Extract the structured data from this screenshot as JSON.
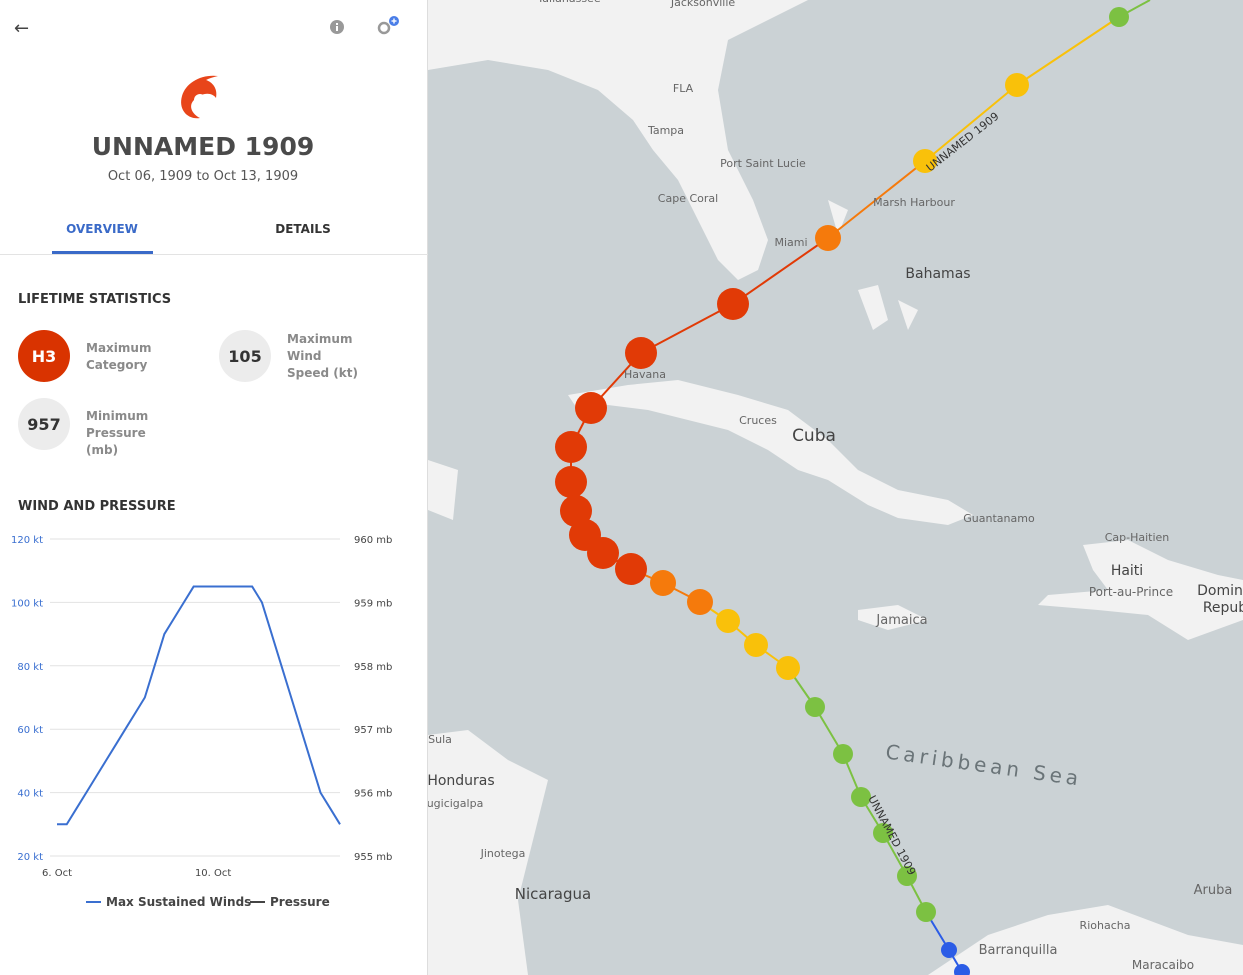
{
  "header": {
    "title": "UNNAMED 1909",
    "dates": "Oct 06, 1909 to Oct 13, 1909"
  },
  "tabs": [
    "OVERVIEW",
    "DETAILS"
  ],
  "stats": {
    "heading": "LIFETIME STATISTICS",
    "items": [
      {
        "value": "H3",
        "label": "Maximum Category"
      },
      {
        "value": "105",
        "label": "Maximum Wind Speed (kt)"
      },
      {
        "value": "957",
        "label": "Minimum Pressure (mb)"
      }
    ]
  },
  "chart_data": {
    "type": "line",
    "title": "WIND AND PRESSURE",
    "x": [
      6,
      6.25,
      6.5,
      6.75,
      7,
      7.25,
      7.5,
      7.75,
      8,
      8.25,
      8.5,
      8.75,
      9,
      9.25,
      9.5,
      9.75,
      10,
      10.25,
      10.5,
      10.75,
      11,
      11.25,
      11.5,
      11.75,
      12,
      12.25,
      12.5,
      12.75,
      13,
      13.25
    ],
    "series": [
      {
        "name": "Max Sustained Winds",
        "color": "#3a6fd0",
        "values": [
          30,
          30,
          35,
          40,
          45,
          50,
          55,
          60,
          65,
          70,
          80,
          90,
          95,
          100,
          105,
          105,
          105,
          105,
          105,
          105,
          105,
          100,
          90,
          80,
          70,
          60,
          50,
          40,
          35,
          30
        ]
      },
      {
        "name": "Pressure",
        "color": "#444444",
        "axis": "y2",
        "values": [
          null,
          null,
          null,
          null,
          null,
          null,
          null,
          null,
          null,
          null,
          null,
          null,
          null,
          null,
          null,
          null,
          null,
          null,
          null,
          null,
          null,
          null,
          null,
          null,
          null,
          null,
          null,
          null,
          null,
          null
        ]
      }
    ],
    "xlim": [
      6,
      13.25
    ],
    "xticks": [
      {
        "value": 6,
        "label": "6. Oct"
      },
      {
        "value": 10,
        "label": "10. Oct"
      }
    ],
    "ylim": [
      20,
      120
    ],
    "yticks": [
      {
        "value": 20,
        "label": "20 kt"
      },
      {
        "value": 40,
        "label": "40 kt"
      },
      {
        "value": 60,
        "label": "60 kt"
      },
      {
        "value": 80,
        "label": "80 kt"
      },
      {
        "value": 100,
        "label": "100 kt"
      },
      {
        "value": 120,
        "label": "120 kt"
      }
    ],
    "y2lim": [
      955,
      960
    ],
    "y2ticks": [
      {
        "value": 955,
        "label": "955 mb"
      },
      {
        "value": 956,
        "label": "956 mb"
      },
      {
        "value": 957,
        "label": "957 mb"
      },
      {
        "value": 958,
        "label": "958 mb"
      },
      {
        "value": 959,
        "label": "959 mb"
      },
      {
        "value": 960,
        "label": "960 mb"
      }
    ],
    "grid": true
  },
  "map": {
    "labels": [
      "Tallahassee",
      "Jacksonville",
      "FLA",
      "Tampa",
      "Port Saint Lucie",
      "Cape Coral",
      "Marsh Harbour",
      "Miami",
      "Bahamas",
      "Havana",
      "Cruces",
      "Cuba",
      "Guantanamo",
      "Cap-Haitien",
      "Haiti",
      "Port-au-Prince",
      "Domin",
      "Repub",
      "Jamaica",
      "Caribbean Sea",
      "Sula",
      "Honduras",
      "ugicigalpa",
      "Jinotega",
      "Nicaragua",
      "Aruba",
      "Riohacha",
      "Barranquilla",
      "Maracaibo"
    ],
    "track_colors": [
      "#7cc142",
      "#f9c10a",
      "#f9c10a",
      "#f57a0c",
      "#e13a06",
      "#e13a06",
      "#e13a06",
      "#e13a06",
      "#e13a06",
      "#e13a06",
      "#e13a06",
      "#e13a06",
      "#e13a06",
      "#f57a0c",
      "#f57a0c",
      "#f9c10a",
      "#f9c10a",
      "#f9c10a",
      "#7cc142",
      "#7cc142",
      "#7cc142",
      "#7cc142",
      "#7cc142",
      "#7cc142",
      "#2b5ce6",
      "#2b5ce6"
    ]
  }
}
